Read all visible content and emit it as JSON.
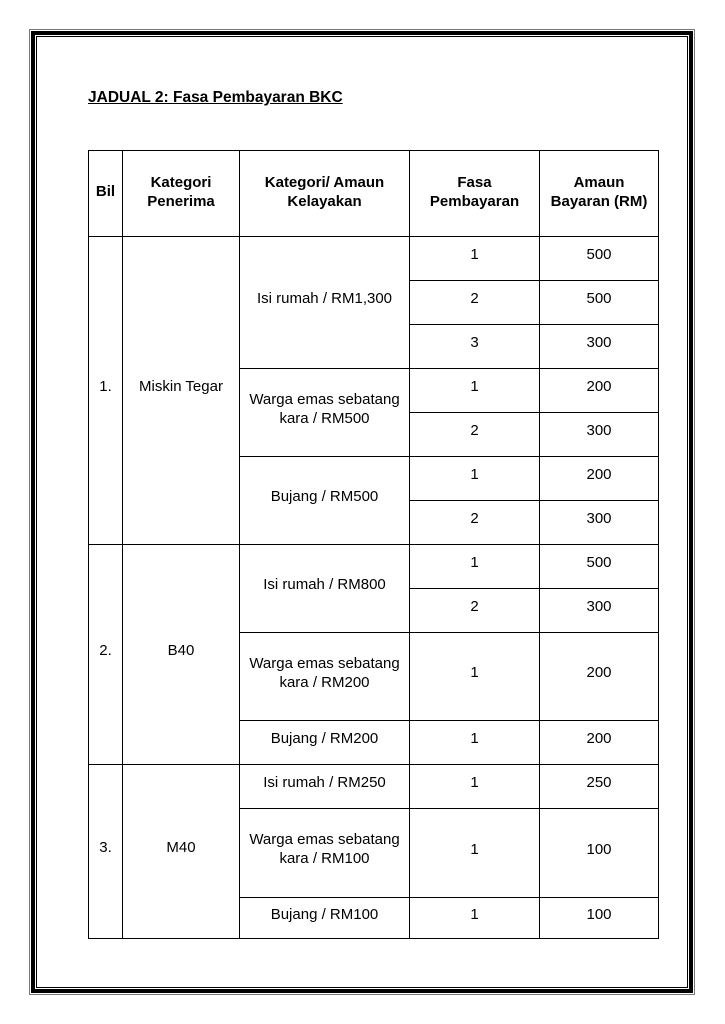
{
  "title": "JADUAL 2: Fasa Pembayaran BKC",
  "headers": [
    "Bil",
    "Kategori Penerima",
    "Kategori/ Amaun Kelayakan",
    "Fasa Pembayaran",
    "Amaun Bayaran (RM)"
  ],
  "groups": [
    {
      "bil": "1.",
      "penerima": "Miskin Tegar",
      "items": [
        {
          "kelayakan": "Isi rumah / RM1,300",
          "phases": [
            {
              "fasa": "1",
              "amaun": "500"
            },
            {
              "fasa": "2",
              "amaun": "500"
            },
            {
              "fasa": "3",
              "amaun": "300"
            }
          ]
        },
        {
          "kelayakan": "Warga emas sebatang kara / RM500",
          "phases": [
            {
              "fasa": "1",
              "amaun": "200"
            },
            {
              "fasa": "2",
              "amaun": "300"
            }
          ]
        },
        {
          "kelayakan": "Bujang / RM500",
          "phases": [
            {
              "fasa": "1",
              "amaun": "200"
            },
            {
              "fasa": "2",
              "amaun": "300"
            }
          ]
        }
      ]
    },
    {
      "bil": "2.",
      "penerima": "B40",
      "items": [
        {
          "kelayakan": "Isi rumah / RM800",
          "phases": [
            {
              "fasa": "1",
              "amaun": "500"
            },
            {
              "fasa": "2",
              "amaun": "300"
            }
          ]
        },
        {
          "kelayakan": "Warga emas sebatang kara / RM200",
          "phases": [
            {
              "fasa": "1",
              "amaun": "200"
            }
          ]
        },
        {
          "kelayakan": "Bujang / RM200",
          "phases": [
            {
              "fasa": "1",
              "amaun": "200"
            }
          ]
        }
      ]
    },
    {
      "bil": "3.",
      "penerima": "M40",
      "items": [
        {
          "kelayakan": "Isi rumah / RM250",
          "phases": [
            {
              "fasa": "1",
              "amaun": "250"
            }
          ]
        },
        {
          "kelayakan": "Warga emas sebatang kara / RM100",
          "phases": [
            {
              "fasa": "1",
              "amaun": "100"
            }
          ]
        },
        {
          "kelayakan": "Bujang / RM100",
          "phases": [
            {
              "fasa": "1",
              "amaun": "100"
            }
          ]
        }
      ]
    }
  ]
}
